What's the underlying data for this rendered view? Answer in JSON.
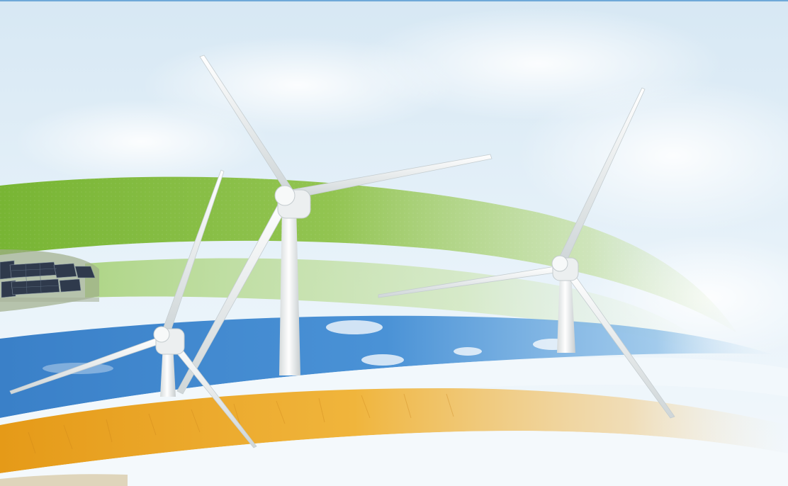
{
  "scene": {
    "description_tags": [
      "wind-turbines",
      "solar-panels",
      "green-band",
      "blue-sky-band",
      "golden-wheat-band"
    ],
    "colors": {
      "sky_top": "#dcebf5",
      "sky_bottom": "#eef6fb",
      "green_band": "#7fb83a",
      "green_band_light": "#b5d98a",
      "blue_band": "#3c86cf",
      "blue_band_light": "#8ec0ea",
      "gold_band": "#e8a21e",
      "gold_band_light": "#f3c968",
      "turbine_white": "#f4f6f6",
      "turbine_shadow": "#c9d1d3",
      "solar_panel": "#2e3a4c"
    },
    "icons": [
      "wind-turbine",
      "solar-panel-array"
    ]
  }
}
